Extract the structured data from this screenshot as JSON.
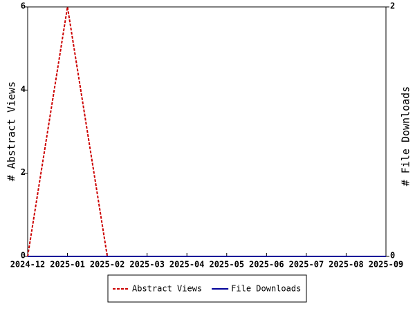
{
  "chart_data": {
    "type": "line",
    "y_label": "# Abstract Views",
    "y2_label": "# File Downloads",
    "categories": [
      "2024-12",
      "2025-01",
      "2025-02",
      "2025-03",
      "2025-04",
      "2025-05",
      "2025-06",
      "2025-07",
      "2025-08",
      "2025-09"
    ],
    "series": [
      {
        "name": "Abstract Views",
        "color": "#cc0000",
        "dashed": true,
        "values": [
          0,
          6,
          0,
          0,
          0,
          0,
          0,
          0,
          0,
          0
        ]
      },
      {
        "name": "File Downloads",
        "color": "#000099",
        "dashed": false,
        "axis": "y2",
        "values": [
          0,
          0,
          0,
          0,
          0,
          0,
          0,
          0,
          0,
          0
        ]
      }
    ],
    "ylim": [
      0,
      6
    ],
    "yticks": [
      0,
      2,
      4,
      6
    ],
    "y2lim": [
      0,
      2
    ],
    "y2ticks": [
      0,
      2
    ],
    "legend": "bottom"
  }
}
